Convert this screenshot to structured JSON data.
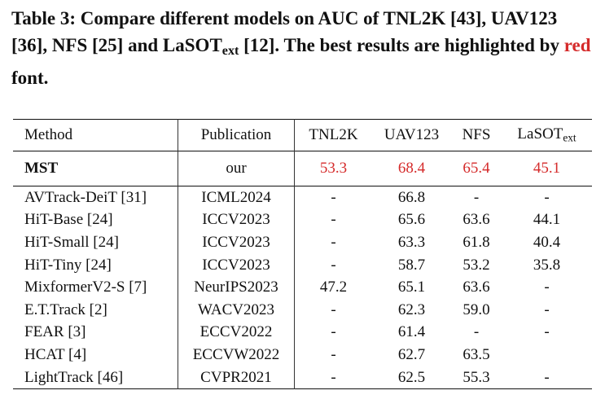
{
  "caption": {
    "label": "Table 3:",
    "text_before": "Compare different models on AUC of TNL2K [43], UAV123 [36], NFS [25] and LaSOT",
    "subscript": "ext",
    "text_after": "[12]. The best results are highlighted by",
    "red_word": "red",
    "end": "font."
  },
  "table": {
    "columns": [
      "Method",
      "Publication",
      "TNL2K",
      "UAV123",
      "NFS",
      "LaSOT"
    ],
    "last_column_subscript": "ext",
    "highlight_color": "#d52b2b",
    "best_rows": [
      [
        "MST",
        "our",
        "53.3",
        "68.4",
        "65.4",
        "45.1"
      ]
    ],
    "rows": [
      [
        "AVTrack-DeiT [31]",
        "ICML2024",
        "-",
        "66.8",
        "-",
        "-"
      ],
      [
        "HiT-Base [24]",
        "ICCV2023",
        "-",
        "65.6",
        "63.6",
        "44.1"
      ],
      [
        "HiT-Small [24]",
        "ICCV2023",
        "-",
        "63.3",
        "61.8",
        "40.4"
      ],
      [
        "HiT-Tiny [24]",
        "ICCV2023",
        "-",
        "58.7",
        "53.2",
        "35.8"
      ],
      [
        "MixformerV2-S [7]",
        "NeurIPS2023",
        "47.2",
        "65.1",
        "63.6",
        "-"
      ],
      [
        "E.T.Track [2]",
        "WACV2023",
        "-",
        "62.3",
        "59.0",
        "-"
      ],
      [
        "FEAR [3]",
        "ECCV2022",
        "-",
        "61.4",
        "-",
        "-"
      ],
      [
        "HCAT [4]",
        "ECCVW2022",
        "-",
        "62.7",
        "63.5",
        null
      ],
      [
        "LightTrack [46]",
        "CVPR2021",
        "-",
        "62.5",
        "55.3",
        "-"
      ]
    ]
  }
}
